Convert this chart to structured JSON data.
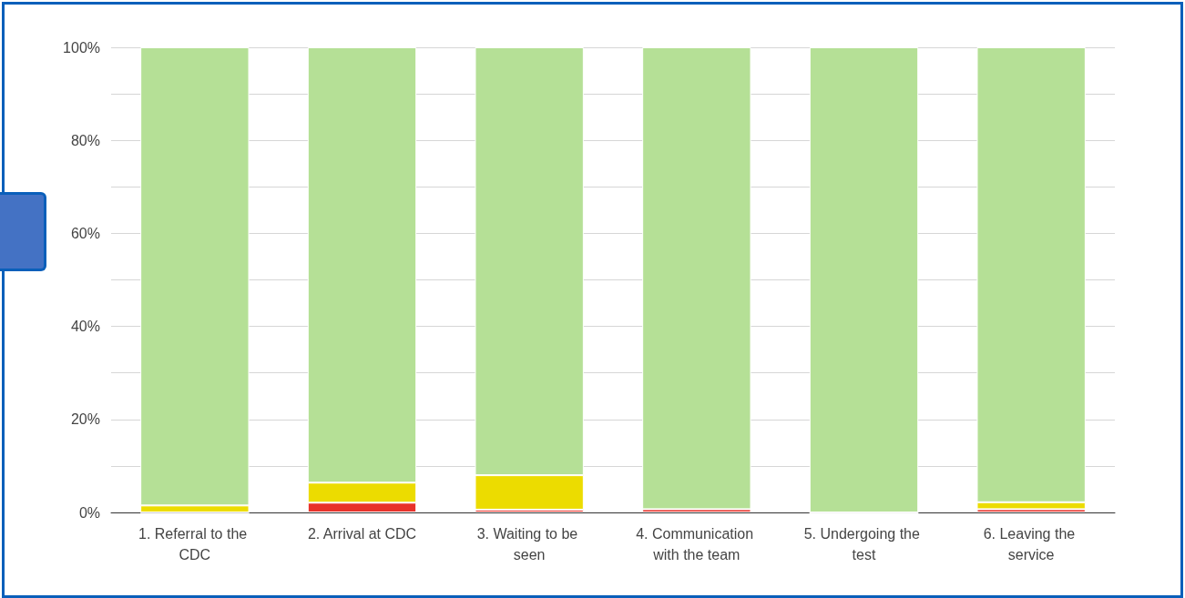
{
  "chart_data": {
    "type": "bar",
    "stacked": true,
    "categories": [
      "1. Referral to the CDC",
      "2. Arrival at CDC",
      "3. Waiting to be seen",
      "4. Communication with the team",
      "5. Undergoing the test",
      "6. Leaving the service"
    ],
    "series": [
      {
        "color": "#e8322a",
        "values": [
          0,
          2.1,
          0.6,
          0.7,
          0,
          0.7
        ]
      },
      {
        "color": "#ecdc00",
        "values": [
          1.5,
          4.3,
          7.4,
          0,
          0,
          1.5
        ]
      },
      {
        "color": "#b5e096",
        "values": [
          98.5,
          93.6,
          92,
          99.3,
          100,
          97.8
        ]
      }
    ],
    "ylim": [
      0,
      100
    ],
    "yticks": [
      {
        "value": 0,
        "label": "0%"
      },
      {
        "value": 10,
        "label": null
      },
      {
        "value": 20,
        "label": "20%"
      },
      {
        "value": 30,
        "label": null
      },
      {
        "value": 40,
        "label": "40%"
      },
      {
        "value": 50,
        "label": null
      },
      {
        "value": 60,
        "label": "60%"
      },
      {
        "value": 70,
        "label": null
      },
      {
        "value": 80,
        "label": "80%"
      },
      {
        "value": 90,
        "label": null
      },
      {
        "value": 100,
        "label": "100%"
      }
    ],
    "grid": "y"
  }
}
